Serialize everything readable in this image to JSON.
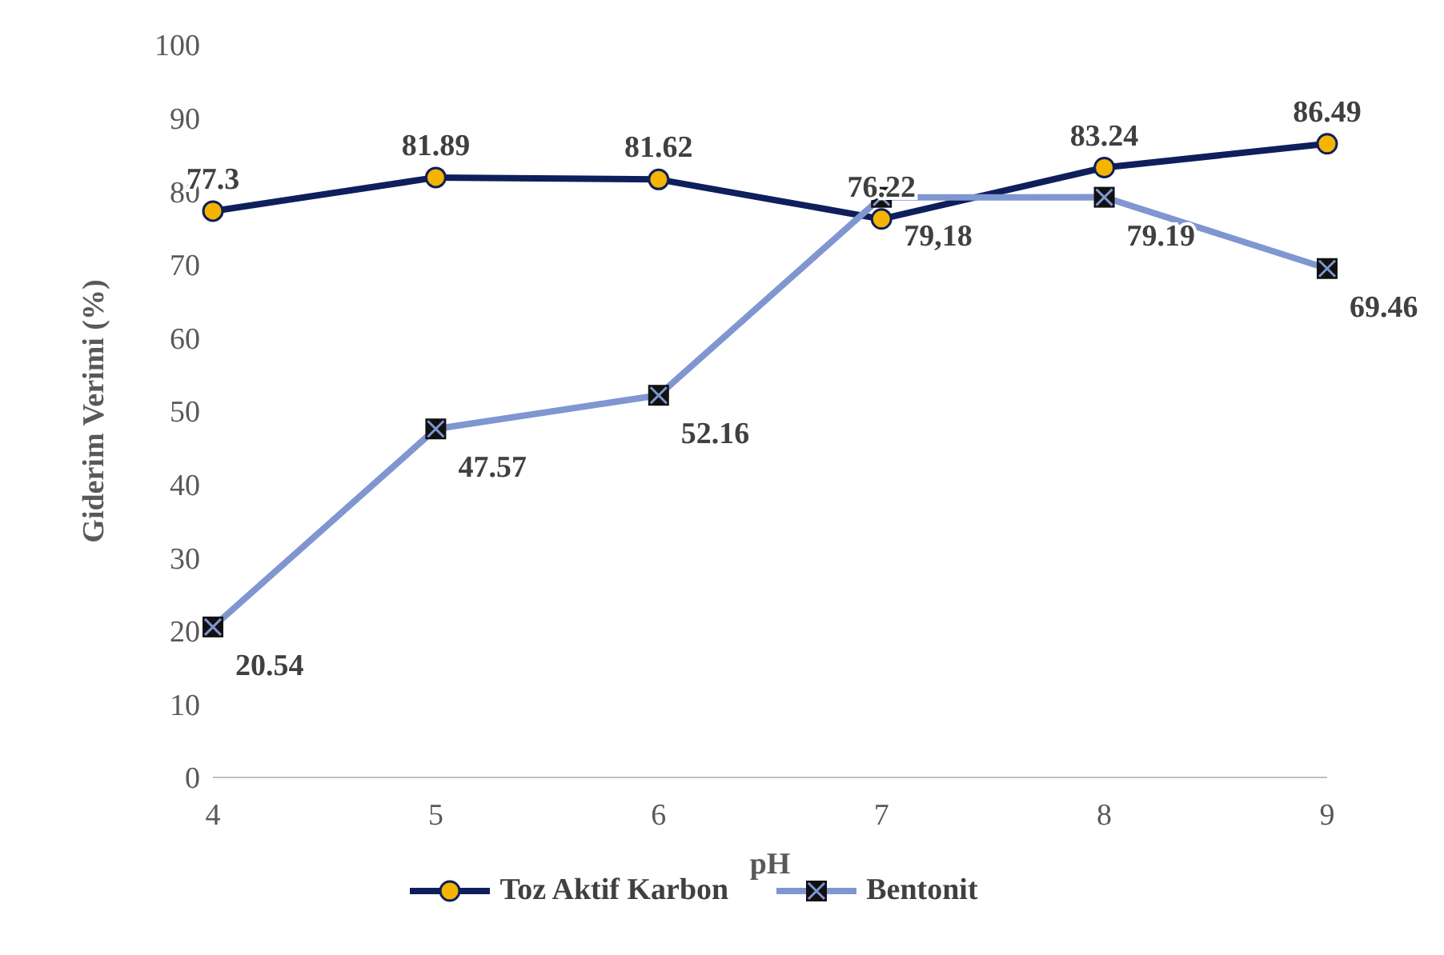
{
  "chart_data": {
    "type": "line",
    "xlabel": "pH",
    "ylabel": "Giderim Verimi (%)",
    "categories": [
      "4",
      "5",
      "6",
      "7",
      "8",
      "9"
    ],
    "ylim": [
      0,
      100
    ],
    "yticks": [
      0,
      10,
      20,
      30,
      40,
      50,
      60,
      70,
      80,
      90,
      100
    ],
    "grid": false,
    "legend": "bottom",
    "series": [
      {
        "name": "Toz Aktif Karbon",
        "color": "#0e1f5b",
        "marker": "circle",
        "values": [
          77.3,
          81.89,
          81.62,
          76.22,
          83.24,
          86.49
        ],
        "value_labels": [
          "77.3",
          "81.89",
          "81.62",
          "76.22",
          "83.24",
          "86.49"
        ]
      },
      {
        "name": "Bentonit",
        "color": "#7f96d0",
        "marker": "cross",
        "values": [
          20.54,
          47.57,
          52.16,
          79.18,
          79.19,
          69.46
        ],
        "value_labels": [
          "20.54",
          "47.57",
          "52.16",
          "79,18",
          "79.19",
          "69.46"
        ]
      }
    ]
  }
}
